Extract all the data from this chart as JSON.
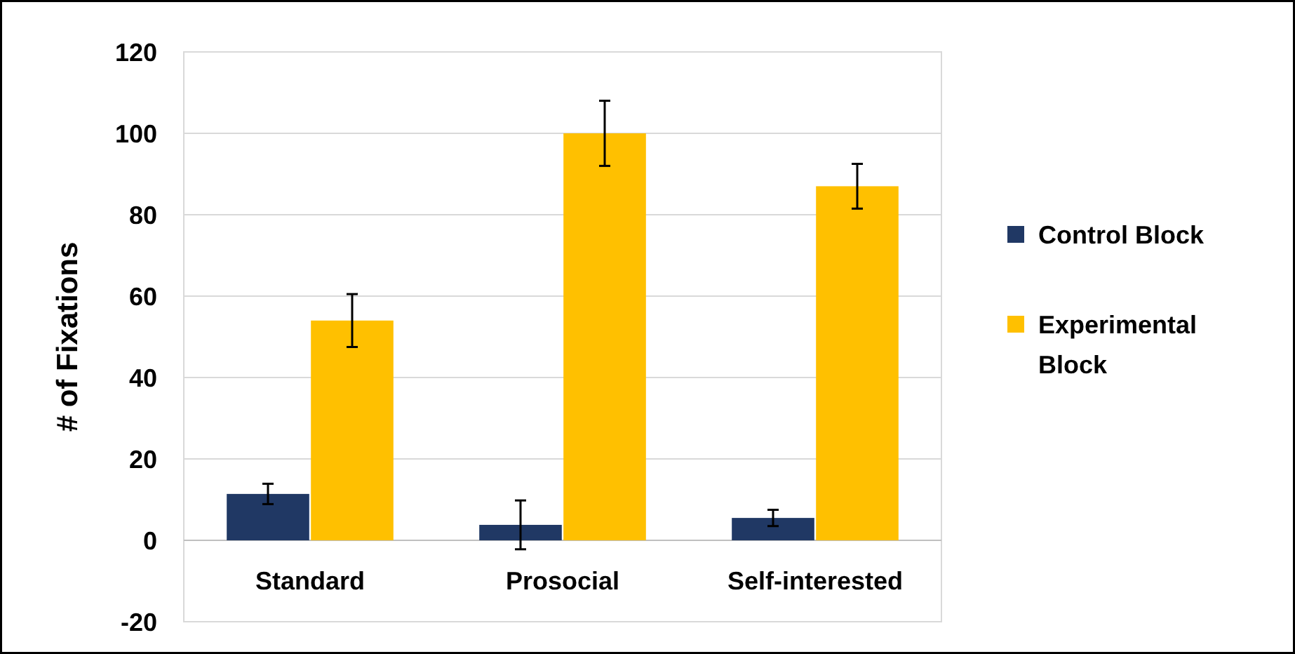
{
  "chart_data": {
    "type": "bar",
    "ylabel": "# of Fixations",
    "categories": [
      "Standard",
      "Prosocial",
      "Self-interested"
    ],
    "series": [
      {
        "name": "Control Block",
        "color": "#203864",
        "values": [
          11.4,
          3.8,
          5.5
        ],
        "errors": [
          2.5,
          6,
          2
        ]
      },
      {
        "name": "Experimental Block",
        "color": "#ffc000",
        "values": [
          54,
          100,
          87
        ],
        "errors": [
          6.5,
          8,
          5.5
        ]
      }
    ],
    "ylim": [
      -20,
      120
    ],
    "yticks": [
      -20,
      0,
      20,
      40,
      60,
      80,
      100,
      120
    ],
    "grid": "y",
    "legend": "right"
  }
}
